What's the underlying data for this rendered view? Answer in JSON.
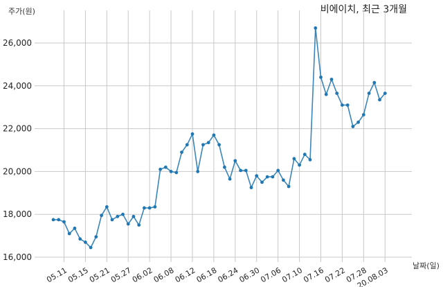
{
  "chart_data": {
    "type": "line",
    "title": "비에이치, 최근 3개월",
    "ylabel": "주가(원)",
    "xlabel": "날짜(일)",
    "ylim": [
      16000,
      27000
    ],
    "yticks": [
      16000,
      18000,
      20000,
      22000,
      24000,
      26000
    ],
    "ytick_labels": [
      "16,000",
      "18,000",
      "20,000",
      "22,000",
      "24,000",
      "26,000"
    ],
    "xtick_labels": [
      "05.11",
      "05.15",
      "05.21",
      "05.27",
      "06.02",
      "06.08",
      "06.12",
      "06.18",
      "06.24",
      "06.30",
      "07.06",
      "07.10",
      "07.16",
      "07.22",
      "07.28",
      "20.08.03"
    ],
    "xtick_index": [
      2,
      6,
      10,
      14,
      18,
      22,
      26,
      30,
      34,
      38,
      42,
      46,
      50,
      54,
      58,
      62
    ],
    "grid": true,
    "color": "#1f77b4",
    "values": [
      17750,
      17750,
      17650,
      17100,
      17350,
      16850,
      16700,
      16450,
      16950,
      17950,
      18350,
      17750,
      17900,
      18000,
      17550,
      17900,
      17500,
      18300,
      18300,
      18350,
      20100,
      20200,
      20000,
      19950,
      20900,
      21250,
      21750,
      20000,
      21250,
      21350,
      21700,
      21250,
      20200,
      19650,
      20500,
      20050,
      20050,
      19250,
      19800,
      19500,
      19750,
      19750,
      20050,
      19600,
      19300,
      20600,
      20300,
      20800,
      20550,
      26700,
      24400,
      23600,
      24300,
      23650,
      23100,
      23100,
      22100,
      22300,
      22650,
      23650,
      24150,
      23350,
      23650
    ]
  }
}
